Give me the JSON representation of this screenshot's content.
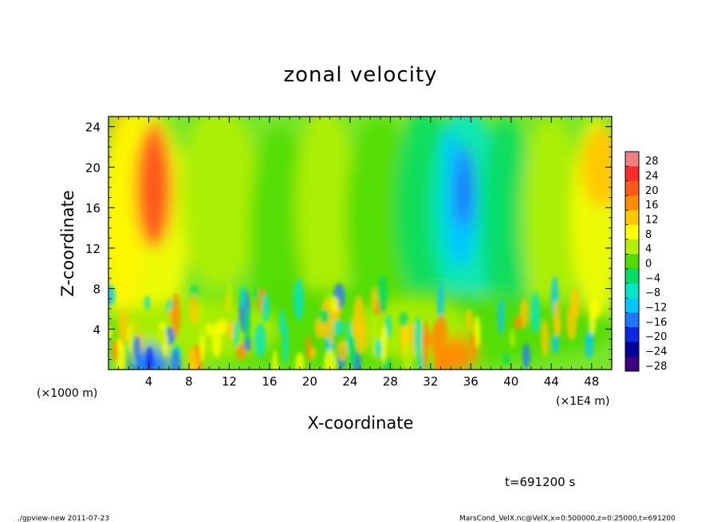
{
  "chart_data": {
    "type": "heatmap",
    "title": "zonal velocity",
    "xlabel": "X-coordinate",
    "ylabel": "Z-coordinate",
    "x_units_left": "(×1000 m)",
    "x_units_right": "(×1E4 m)",
    "xlim": [
      0,
      50
    ],
    "ylim": [
      0,
      25
    ],
    "x_ticks": [
      4,
      8,
      12,
      16,
      20,
      24,
      28,
      32,
      36,
      40,
      44,
      48
    ],
    "x_tick_labels": [
      "4",
      "8",
      "12",
      "16",
      "20",
      "24",
      "28",
      "32",
      "36",
      "40",
      "44",
      "48"
    ],
    "y_ticks": [
      4,
      8,
      12,
      16,
      20,
      24
    ],
    "y_tick_labels": [
      "4",
      "8",
      "12",
      "16",
      "20",
      "24"
    ],
    "colorbar": {
      "levels": [
        28,
        24,
        20,
        16,
        12,
        8,
        4,
        0,
        -4,
        -8,
        -12,
        -16,
        -20,
        -24,
        -28
      ],
      "labels": [
        "28",
        "24",
        "20",
        "16",
        "12",
        "8",
        "4",
        "0",
        "−4",
        "−8",
        "−12",
        "−16",
        "−20",
        "−24",
        "−28"
      ],
      "colors": [
        "#f08080",
        "#ff2a2a",
        "#ff5a1a",
        "#ff8c00",
        "#ffc800",
        "#ffff00",
        "#b4f000",
        "#50dc00",
        "#00dc64",
        "#00e6c8",
        "#00c8ff",
        "#1e78ff",
        "#0a28e6",
        "#0000a0",
        "#3c0082"
      ]
    },
    "features": [
      {
        "x": 4.5,
        "z": 18,
        "value": 20
      },
      {
        "x": 35,
        "z": 16,
        "value": -14
      },
      {
        "x": 4,
        "z": 0.5,
        "value": -18
      },
      {
        "x": 34.5,
        "z": 1.5,
        "value": 16
      },
      {
        "x": 49,
        "z": 20,
        "value": 12
      }
    ]
  },
  "annotations": {
    "time": "t=691200 s",
    "footer_left": "./gpview-new  2011-07-23",
    "footer_right": "MarsCond_VelX.nc@VelX,x=0:500000,z=0:25000,t=691200"
  }
}
